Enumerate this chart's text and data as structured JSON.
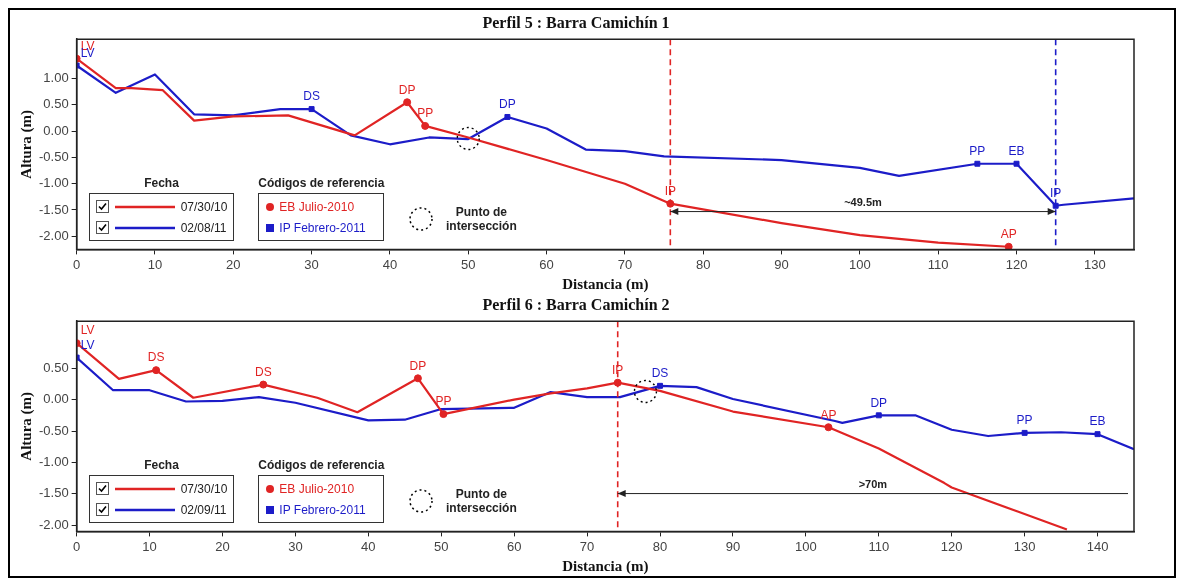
{
  "chart_data": [
    {
      "type": "line",
      "title": "Perfil 5 : Barra Camichín 1",
      "xlabel": "Distancia (m)",
      "ylabel": "Altura (m)",
      "legend_title": "Fecha",
      "legend": "bottom left",
      "marker": "none",
      "line_style": "solid",
      "xlim": [
        0,
        135
      ],
      "xticks": [
        0,
        10,
        20,
        30,
        40,
        50,
        60,
        70,
        80,
        90,
        100,
        110,
        120,
        130
      ],
      "ylim": [
        -2.25,
        1.75
      ],
      "yticks": [
        {
          "value": -2,
          "label": "-2.00"
        },
        {
          "value": -1.5,
          "label": "-1.50"
        },
        {
          "value": -1,
          "label": "-1.00"
        },
        {
          "value": -0.5,
          "label": "-0.50"
        },
        {
          "value": 0,
          "label": "0.00"
        },
        {
          "value": 0.5,
          "label": "0.50"
        },
        {
          "value": 1,
          "label": "1.00"
        }
      ],
      "series": [
        {
          "name": "07/30/10",
          "type": "line",
          "color": "#e02424",
          "x": [
            0,
            5,
            7,
            11,
            15,
            20,
            27,
            35.5,
            42.2,
            44.5,
            50,
            60,
            70,
            75.8,
            90,
            100,
            110,
            119
          ],
          "values": [
            1.38,
            0.82,
            0.82,
            0.78,
            0.2,
            0.28,
            0.3,
            -0.08,
            0.55,
            0.1,
            -0.12,
            -0.55,
            -1.0,
            -1.38,
            -1.75,
            -1.98,
            -2.12,
            -2.2
          ]
        },
        {
          "name": "02/08/11",
          "type": "line",
          "color": "#1c1cc8",
          "x": [
            0,
            5,
            10,
            15,
            20,
            26,
            30,
            35,
            40,
            45,
            50,
            55,
            60,
            65,
            70,
            75,
            90,
            100,
            105,
            115,
            120,
            125,
            126,
            135
          ],
          "values": [
            1.25,
            0.73,
            1.08,
            0.32,
            0.3,
            0.42,
            0.42,
            -0.08,
            -0.25,
            -0.12,
            -0.15,
            0.27,
            0.05,
            -0.35,
            -0.38,
            -0.48,
            -0.55,
            -0.7,
            -0.85,
            -0.62,
            -0.62,
            -1.42,
            -1.4,
            -1.28
          ]
        },
        {
          "name": "EB Julio-2010",
          "type": "scatter",
          "marker": "circle",
          "color": "#e02424",
          "x": [
            0,
            42.2,
            44.5,
            75.8,
            119
          ],
          "values": [
            1.38,
            0.55,
            0.1,
            -1.38,
            -2.2
          ],
          "value_labels": [
            "LV",
            "DP",
            "PP",
            "IP",
            "AP"
          ]
        },
        {
          "name": "IP Febrero-2011",
          "type": "scatter",
          "marker": "square",
          "color": "#1c1cc8",
          "x": [
            0,
            30,
            55,
            115,
            120,
            125
          ],
          "values": [
            1.25,
            0.42,
            0.27,
            -0.62,
            -0.62,
            -1.42
          ],
          "value_labels": [
            "LV",
            "DS",
            "DP",
            "PP",
            "EB",
            "IP"
          ]
        },
        {
          "name": "Punto de intersección",
          "type": "scatter",
          "marker": "circle",
          "line_style": "dotted",
          "color": "#000000",
          "x": [
            50
          ],
          "values": [
            -0.14
          ]
        }
      ],
      "ref_lines": [
        {
          "axis": "x",
          "value": 75.8,
          "color": "#e02424",
          "line_style": "dashed"
        },
        {
          "axis": "x",
          "value": 125,
          "color": "#1c1cc8",
          "line_style": "dashed"
        }
      ],
      "annotations": [
        "Códigos de referencia",
        "~49.5m"
      ]
    },
    {
      "type": "line",
      "title": "Perfil 6 : Barra Camichín 2",
      "xlabel": "Distancia (m)",
      "ylabel": "Altura (m)",
      "legend_title": "Fecha",
      "legend": "bottom left",
      "marker": "none",
      "line_style": "solid",
      "xlim": [
        0,
        145
      ],
      "xticks": [
        0,
        10,
        20,
        30,
        40,
        50,
        60,
        70,
        80,
        90,
        100,
        110,
        120,
        130,
        140
      ],
      "ylim": [
        -2.1,
        1.25
      ],
      "yticks": [
        {
          "value": -2,
          "label": "-2.00"
        },
        {
          "value": -1.5,
          "label": "-1.50"
        },
        {
          "value": -1,
          "label": "-1.00"
        },
        {
          "value": -0.5,
          "label": "-0.50"
        },
        {
          "value": 0,
          "label": "0.00"
        },
        {
          "value": 0.5,
          "label": "0.50"
        }
      ],
      "series": [
        {
          "name": "07/30/10",
          "type": "line",
          "color": "#e02424",
          "x": [
            0,
            5.8,
            10.9,
            16,
            25.6,
            33,
            38.5,
            46.8,
            50.3,
            60,
            65,
            70,
            74.2,
            80,
            90,
            103.1,
            110,
            119,
            120,
            135.8
          ],
          "values": [
            0.9,
            0.33,
            0.47,
            0.03,
            0.24,
            0.03,
            -0.2,
            0.34,
            -0.23,
            0,
            0.1,
            0.18,
            0.27,
            0.14,
            -0.19,
            -0.44,
            -0.78,
            -1.33,
            -1.4,
            -2.07
          ]
        },
        {
          "name": "02/09/11",
          "type": "line",
          "color": "#1c1cc8",
          "x": [
            0,
            5,
            10,
            15,
            20,
            25,
            30,
            40,
            45,
            50,
            60,
            65,
            70,
            74.5,
            80,
            85,
            90,
            104,
            105,
            110,
            115,
            120,
            125,
            130,
            135,
            140,
            145
          ],
          "values": [
            0.67,
            0.15,
            0.15,
            -0.03,
            -0.02,
            0.04,
            -0.05,
            -0.33,
            -0.32,
            -0.15,
            -0.13,
            0.12,
            0.04,
            0.04,
            0.22,
            0.2,
            0.01,
            -0.34,
            -0.37,
            -0.25,
            -0.25,
            -0.48,
            -0.58,
            -0.53,
            -0.52,
            -0.55,
            -0.79
          ]
        },
        {
          "name": "EB Julio-2010",
          "type": "scatter",
          "marker": "circle",
          "color": "#e02424",
          "x": [
            0,
            10.9,
            25.6,
            46.8,
            50.3,
            74.2,
            103.1
          ],
          "values": [
            0.9,
            0.47,
            0.24,
            0.34,
            -0.23,
            0.27,
            -0.44
          ],
          "value_labels": [
            "LV",
            "DS",
            "DS",
            "DP",
            "PP",
            "IP",
            "AP"
          ]
        },
        {
          "name": "IP Febrero-2011",
          "type": "scatter",
          "marker": "square",
          "color": "#1c1cc8",
          "x": [
            0,
            80,
            110,
            130,
            140
          ],
          "values": [
            0.67,
            0.22,
            -0.25,
            -0.53,
            -0.55
          ],
          "value_labels": [
            "LV",
            "DS",
            "DP",
            "PP",
            "EB"
          ]
        },
        {
          "name": "Punto de intersección",
          "type": "scatter",
          "marker": "circle",
          "line_style": "dotted",
          "color": "#000000",
          "x": [
            78
          ],
          "values": [
            0.13
          ]
        }
      ],
      "ref_lines": [
        {
          "axis": "x",
          "value": 74.2,
          "color": "#e02424",
          "line_style": "dashed"
        }
      ],
      "annotations": [
        "Códigos de referencia",
        ">70m"
      ]
    }
  ]
}
